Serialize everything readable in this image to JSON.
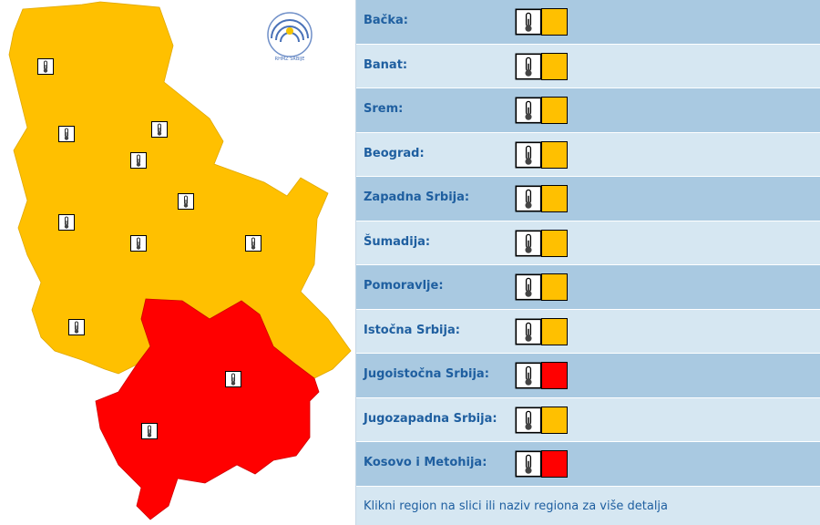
{
  "logo": {
    "text": "RHMZ SRBIJE"
  },
  "regions": [
    {
      "name": "Bačka:",
      "color": "#ffc000"
    },
    {
      "name": "Banat:",
      "color": "#ffc000"
    },
    {
      "name": "Srem:",
      "color": "#ffc000"
    },
    {
      "name": "Beograd:",
      "color": "#ffc000"
    },
    {
      "name": "Zapadna Srbija:",
      "color": "#ffc000"
    },
    {
      "name": "Šumadija:",
      "color": "#ffc000"
    },
    {
      "name": "Pomoravlje:",
      "color": "#ffc000"
    },
    {
      "name": "Istočna Srbija:",
      "color": "#ffc000"
    },
    {
      "name": "Jugoistočna Srbija:",
      "color": "#ff0000"
    },
    {
      "name": "Jugozapadna Srbija:",
      "color": "#ffc000"
    },
    {
      "name": "Kosovo i Metohija:",
      "color": "#ff0000"
    }
  ],
  "footer": "Klikni region na slici ili naziv regiona za više detalja"
}
